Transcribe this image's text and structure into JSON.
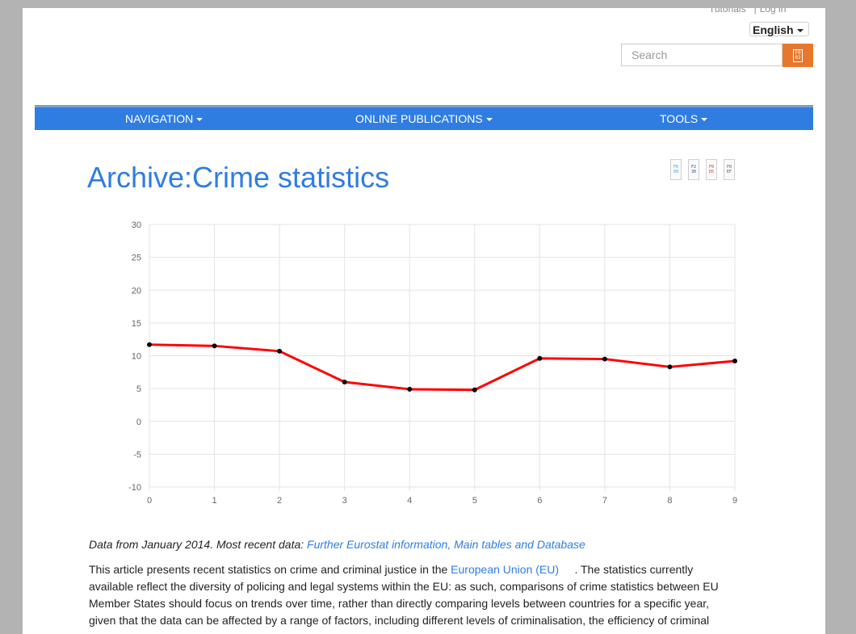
{
  "header": {
    "top_links": {
      "tutorials": "Tutorials",
      "separator": "|",
      "login": "Log in"
    },
    "language": "English",
    "search": {
      "placeholder": "Search"
    }
  },
  "nav": {
    "items": [
      {
        "label": "NAVIGATION"
      },
      {
        "label": "ONLINE PUBLICATIONS"
      },
      {
        "label": "TOOLS"
      }
    ]
  },
  "page": {
    "title": "Archive:Crime statistics"
  },
  "chart_data": {
    "type": "line",
    "x": [
      0,
      1,
      2,
      3,
      4,
      5,
      6,
      7,
      8,
      9
    ],
    "series": [
      {
        "values": [
          11.7,
          11.5,
          10.7,
          6.0,
          4.9,
          4.8,
          9.6,
          9.5,
          8.3,
          9.2
        ]
      }
    ],
    "xlim": [
      0,
      9
    ],
    "ylim": [
      -10,
      30
    ],
    "x_ticks": [
      "0",
      "1",
      "2",
      "3",
      "4",
      "5",
      "6",
      "7",
      "8",
      "9"
    ],
    "y_ticks": [
      "30",
      "25",
      "20",
      "15",
      "10",
      "5",
      "0",
      "-5",
      "-10"
    ],
    "grid": true,
    "line_color": "#ff0000",
    "point_color": "#000000"
  },
  "content": {
    "data_prefix": "Data from January 2014. Most recent data: ",
    "data_link": "Further Eurostat information, Main tables and Database",
    "para_before_link": "This article presents recent statistics on crime and criminal justice in the ",
    "para_link": "European Union (EU)",
    "para_after_link": "     . The statistics currently available reflect the diversity of policing and legal systems within the EU: as such, comparisons of crime statistics between EU Member States should focus on trends over time, rather than directly comparing levels between countries for a specific year, given that the data can be affected by a range of factors, including different levels of criminalisation, the efficiency of criminal"
  },
  "colors": {
    "accent": "#2f7de1",
    "search_button": "#e8772e",
    "background": "#b3b3b3"
  },
  "icons": [
    "search-icon",
    "share-icon",
    "print-icon",
    "pdf-icon",
    "bookmark-icon"
  ]
}
